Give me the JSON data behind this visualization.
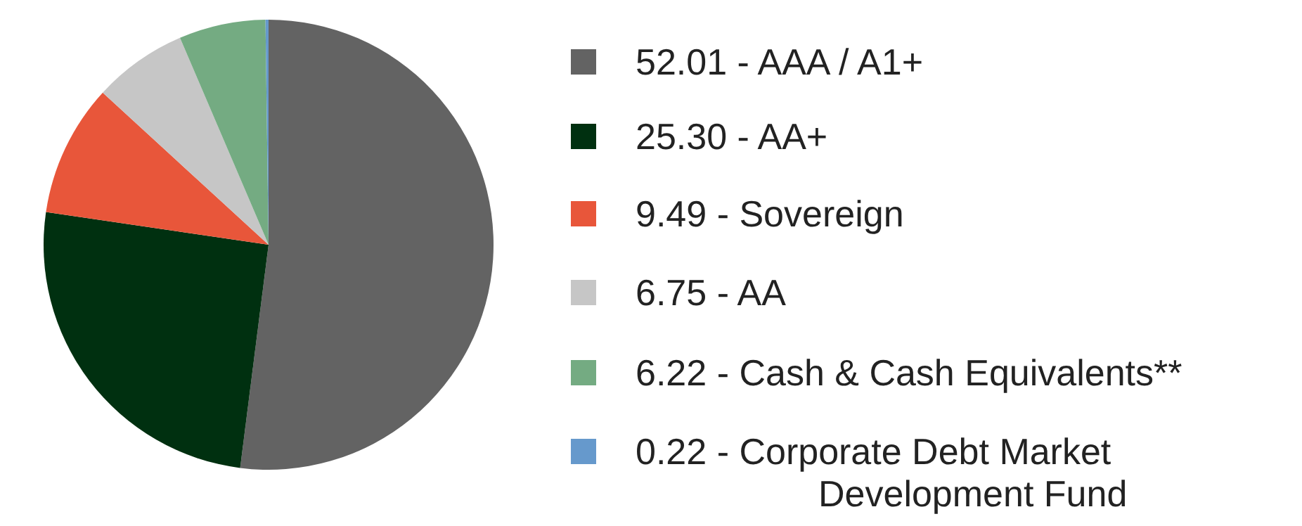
{
  "chart_data": {
    "type": "pie",
    "categories": [
      "AAA / A1+",
      "AA+",
      "Sovereign",
      "AA",
      "Cash & Cash Equivalents**",
      "Corporate Debt Market Development Fund"
    ],
    "values": [
      52.01,
      25.3,
      9.49,
      6.75,
      6.22,
      0.22
    ],
    "value_labels": [
      "52.01",
      "25.30",
      "9.49",
      "6.75",
      "6.22",
      "0.22"
    ],
    "colors": [
      "#636363",
      "#003010",
      "#e8563a",
      "#c6c6c6",
      "#74ab82",
      "#6699cc"
    ],
    "legend": "right"
  }
}
